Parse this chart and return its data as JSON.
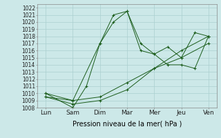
{
  "x_labels": [
    "Lun",
    "Sam",
    "Dim",
    "Mar",
    "Mer",
    "Jeu",
    "Ven"
  ],
  "x_positions": [
    0,
    1,
    2,
    3,
    4,
    5,
    6
  ],
  "lines": [
    {
      "x": [
        0,
        1,
        2,
        2.5,
        3,
        3.5,
        4,
        4.5,
        5,
        5.5,
        6
      ],
      "y": [
        1010,
        1009,
        1017,
        1021,
        1021.5,
        1017,
        1015.5,
        1016.5,
        1015,
        1018.5,
        1018
      ]
    },
    {
      "x": [
        0,
        1,
        1.5,
        2,
        2.5,
        3,
        3.5,
        4,
        4.5,
        5,
        5.5,
        6
      ],
      "y": [
        1010,
        1008,
        1011,
        1017,
        1020,
        1021.5,
        1016,
        1015.5,
        1014,
        1014,
        1013.5,
        1018
      ]
    },
    {
      "x": [
        0,
        1,
        2,
        3,
        4,
        5,
        6
      ],
      "y": [
        1009.5,
        1009,
        1009.5,
        1011.5,
        1013.5,
        1015,
        1017
      ]
    },
    {
      "x": [
        0,
        1,
        2,
        3,
        4,
        5,
        6
      ],
      "y": [
        1009.5,
        1008.5,
        1009,
        1010.5,
        1013.5,
        1016,
        1018
      ]
    }
  ],
  "xlabel_text": "Pression niveau de la mer( hPa )",
  "ylim": [
    1008,
    1022.5
  ],
  "yticks": [
    1008,
    1009,
    1010,
    1011,
    1012,
    1013,
    1014,
    1015,
    1016,
    1017,
    1018,
    1019,
    1020,
    1021,
    1022
  ],
  "line_color": "#1a5c1a",
  "bg_color": "#cce8e8",
  "grid_color": "#aacfcf",
  "fig_bg": "#cce8e8",
  "ytick_fontsize": 5.5,
  "xtick_fontsize": 6.5,
  "xlabel_fontsize": 7
}
